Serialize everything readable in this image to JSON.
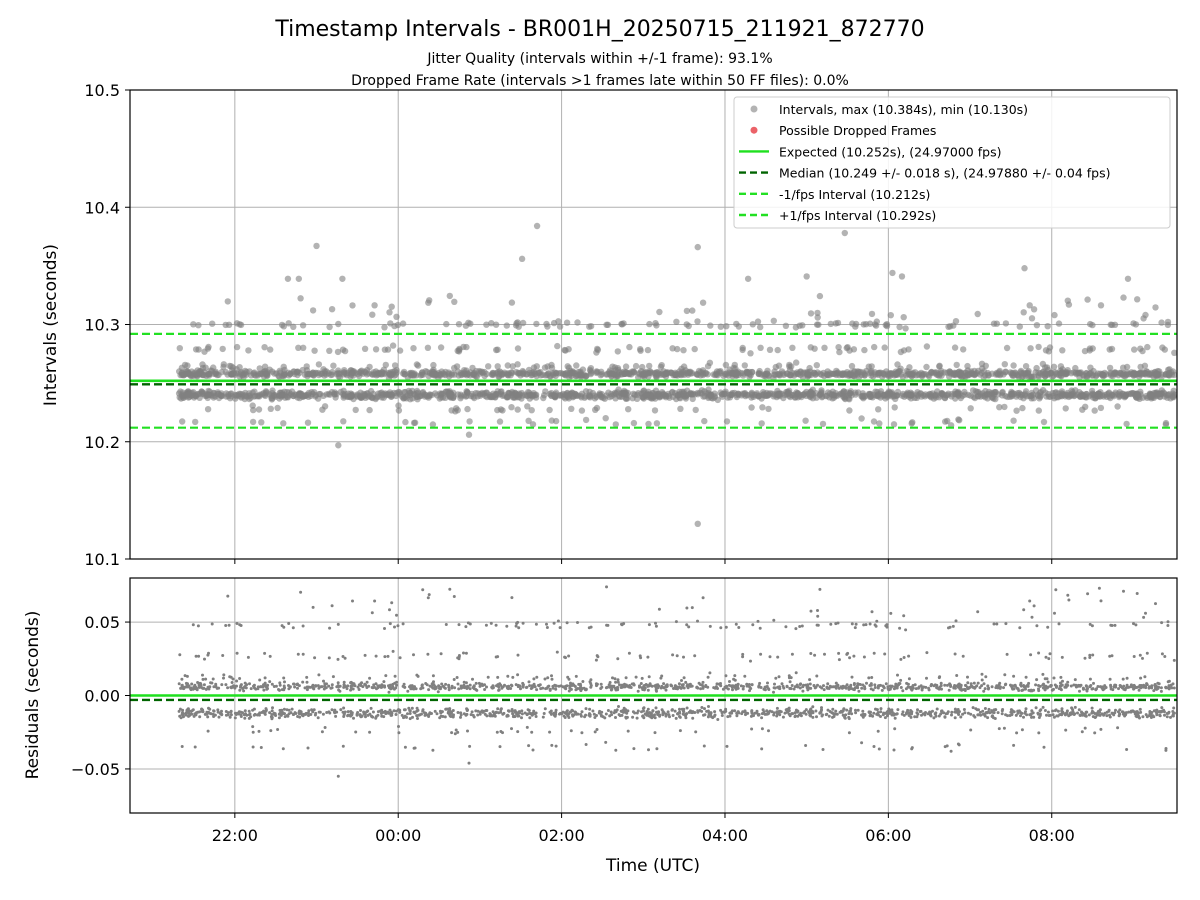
{
  "title": "Timestamp Intervals - BR001H_20250715_211921_872770",
  "subtitle_1": "Jitter Quality (intervals within +/-1 frame): 93.1%",
  "subtitle_2": "Dropped Frame Rate (intervals >1 frames late within 50 FF files): 0.0%",
  "colors": {
    "points": "#808080",
    "dropped": "#e8474e",
    "expected": "#1fe01f",
    "median": "#006400",
    "fps_band": "#22e022",
    "grid": "#b0b0b0"
  },
  "chart_data": [
    {
      "type": "scatter",
      "name": "intervals-panel",
      "ylabel": "Intervals (seconds)",
      "ylim": [
        10.1,
        10.5
      ],
      "yticks": [
        "10.1",
        "10.2",
        "10.3",
        "10.4",
        "10.5"
      ],
      "xlim": [
        "20:43",
        "09:32"
      ],
      "xticks": [
        "22:00",
        "00:00",
        "02:00",
        "04:00",
        "06:00",
        "08:00"
      ],
      "grid": true,
      "legend_placement": "top-right",
      "legend": [
        "Intervals, max (10.384s), min (10.130s)",
        "Possible Dropped Frames",
        "Expected (10.252s), (24.97000 fps)",
        "Median (10.249 +/- 0.018 s), (24.97880 +/- 0.04 fps)",
        "-1/fps Interval (10.212s)",
        "+1/fps Interval (10.292s)"
      ],
      "reference_lines": {
        "expected": 10.252,
        "median": 10.249,
        "minus_1_fps": 10.212,
        "plus_1_fps": 10.292
      },
      "time_range": [
        "21:19",
        "09:32"
      ],
      "intervals_max": 10.384,
      "intervals_min": 10.13,
      "main_bands": [
        10.24,
        10.258
      ],
      "outliers": [
        {
          "t": "23:00",
          "y": 10.367
        },
        {
          "t": "23:16",
          "y": 10.197
        },
        {
          "t": "00:52",
          "y": 10.206
        },
        {
          "t": "01:31",
          "y": 10.356
        },
        {
          "t": "01:42",
          "y": 10.384
        },
        {
          "t": "03:40",
          "y": 10.366
        },
        {
          "t": "03:40",
          "y": 10.13
        },
        {
          "t": "05:28",
          "y": 10.378
        },
        {
          "t": "06:03",
          "y": 10.344
        },
        {
          "t": "07:40",
          "y": 10.348
        },
        {
          "t": "23:19",
          "y": 10.339
        },
        {
          "t": "22:47",
          "y": 10.339
        },
        {
          "t": "22:39",
          "y": 10.339
        },
        {
          "t": "04:17",
          "y": 10.339
        },
        {
          "t": "05:00",
          "y": 10.341
        },
        {
          "t": "06:10",
          "y": 10.341
        },
        {
          "t": "08:56",
          "y": 10.339
        }
      ]
    },
    {
      "type": "scatter",
      "name": "residuals-panel",
      "ylabel": "Residuals (seconds)",
      "xlabel": "Time (UTC)",
      "ylim": [
        -0.08,
        0.08
      ],
      "yticks": [
        "−0.05",
        "0.00",
        "0.05"
      ],
      "xlim": [
        "20:43",
        "09:32"
      ],
      "xticks": [
        "22:00",
        "00:00",
        "02:00",
        "04:00",
        "06:00",
        "08:00"
      ],
      "grid": true,
      "reference_lines": {
        "expected": 0.0,
        "median": -0.003
      },
      "main_bands": [
        -0.012,
        0.006
      ],
      "outliers": [
        {
          "t": "23:16",
          "y": -0.055
        },
        {
          "t": "00:52",
          "y": -0.046
        },
        {
          "t": "02:33",
          "y": 0.074
        },
        {
          "t": "08:03",
          "y": 0.072
        },
        {
          "t": "08:35",
          "y": 0.073
        },
        {
          "t": "00:18",
          "y": 0.072
        }
      ]
    }
  ]
}
